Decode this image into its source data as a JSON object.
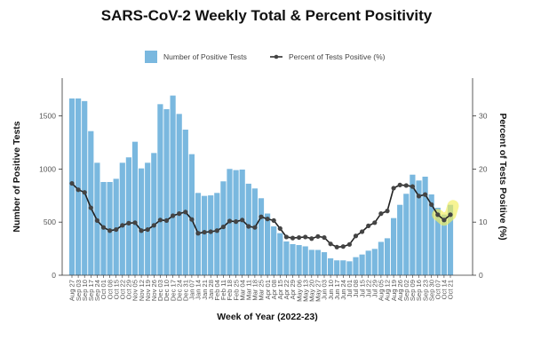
{
  "chart_data": {
    "type": "bar+line",
    "title": "SARS-CoV-2 Weekly Total & Percent Positivity",
    "xlabel": "Week of Year (2022-23)",
    "ylabel": "Number of Positive Tests",
    "y2label": "Percent of Tests Positive (%)",
    "ylim": [
      0,
      1850
    ],
    "y2lim": [
      0,
      37
    ],
    "yticks": [
      0,
      500,
      1000,
      1500
    ],
    "y2ticks": [
      0,
      10,
      20,
      30
    ],
    "grid": false,
    "legend": {
      "position": "top",
      "entries": [
        {
          "label": "Number of Positive Tests",
          "kind": "bar"
        },
        {
          "label": "Percent of Tests Positive (%)",
          "kind": "line-point"
        }
      ]
    },
    "colors": {
      "bar": "#7ab8df",
      "line": "#222222",
      "point": "#444444",
      "highlight": "#f2ee5a"
    },
    "categories": [
      "Aug 27",
      "Sep 03",
      "Sep 10",
      "Sep 17",
      "Sep 24",
      "Oct 01",
      "Oct 08",
      "Oct 15",
      "Oct 22",
      "Oct 29",
      "Nov 05",
      "Nov 12",
      "Nov 19",
      "Nov 26",
      "Dec 03",
      "Dec 10",
      "Dec 17",
      "Dec 24",
      "Dec 31",
      "Jan 07",
      "Jan 14",
      "Jan 21",
      "Jan 28",
      "Feb 04",
      "Feb 11",
      "Feb 18",
      "Feb 25",
      "Mar 04",
      "Mar 11",
      "Mar 18",
      "Mar 25",
      "Apr 01",
      "Apr 08",
      "Apr 15",
      "Apr 22",
      "Apr 29",
      "May 06",
      "May 13",
      "May 20",
      "May 27",
      "Jun 03",
      "Jun 10",
      "Jun 17",
      "Jun 24",
      "Jul 01",
      "Jul 08",
      "Jul 15",
      "Jul 22",
      "Jul 29",
      "Aug 05",
      "Aug 12",
      "Aug 19",
      "Aug 26",
      "Sep 02",
      "Sep 09",
      "Sep 16",
      "Sep 23",
      "Sep 30",
      "Oct 07",
      "Oct 14",
      "Oct 21"
    ],
    "series": [
      {
        "name": "Number of Positive Tests",
        "type": "bar",
        "axis": "left",
        "values": [
          1665,
          1665,
          1640,
          1357,
          1059,
          878,
          878,
          908,
          1059,
          1110,
          1257,
          1006,
          1059,
          1151,
          1611,
          1564,
          1692,
          1519,
          1371,
          1140,
          775,
          747,
          752,
          775,
          884,
          1001,
          990,
          995,
          862,
          817,
          725,
          581,
          460,
          396,
          318,
          293,
          284,
          272,
          239,
          238,
          217,
          159,
          140,
          140,
          131,
          170,
          195,
          231,
          248,
          314,
          348,
          538,
          663,
          767,
          947,
          892,
          928,
          761,
          635,
          571,
          663
        ]
      },
      {
        "name": "Percent of Tests Positive (%)",
        "type": "line",
        "axis": "right",
        "values": [
          17.3,
          16.1,
          15.6,
          12.7,
          10.3,
          9.0,
          8.4,
          8.6,
          9.4,
          9.8,
          9.9,
          8.4,
          8.6,
          9.4,
          10.4,
          10.3,
          11.2,
          11.6,
          11.9,
          10.5,
          7.9,
          8.1,
          8.2,
          8.4,
          9.1,
          10.2,
          10.1,
          10.4,
          9.2,
          9.0,
          11.0,
          10.6,
          10.3,
          8.8,
          7.2,
          7.0,
          7.1,
          7.2,
          6.9,
          7.3,
          7.1,
          5.9,
          5.3,
          5.4,
          5.8,
          7.4,
          8.2,
          9.3,
          9.9,
          11.6,
          12.1,
          16.4,
          17.0,
          16.9,
          16.7,
          14.9,
          15.2,
          13.3,
          11.4,
          10.4,
          11.4
        ]
      }
    ],
    "annotations": [
      {
        "kind": "highlight",
        "target": "Percent of Tests Positive (%)",
        "categories": [
          "Oct 07",
          "Oct 14",
          "Oct 21"
        ]
      }
    ]
  }
}
